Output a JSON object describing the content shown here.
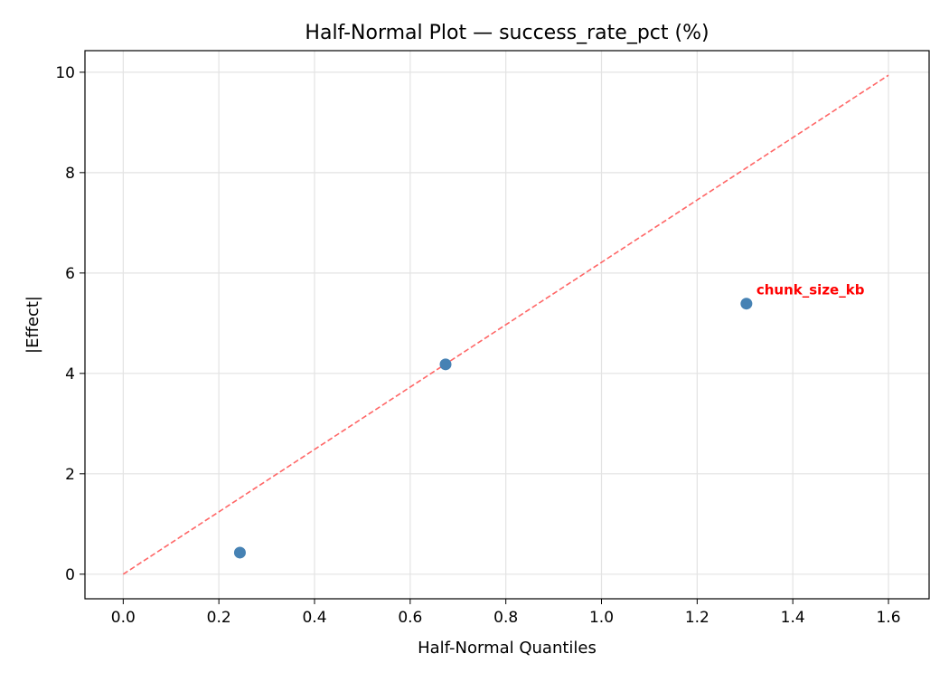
{
  "chart_data": {
    "type": "scatter",
    "title": "Half-Normal Plot — success_rate_pct (%)",
    "xlabel": "Half-Normal Quantiles",
    "ylabel": "|Effect|",
    "xlim": [
      -0.08,
      1.685
    ],
    "ylim": [
      -0.49,
      10.43
    ],
    "xticks": [
      0.0,
      0.2,
      0.4,
      0.6,
      0.8,
      1.0,
      1.2,
      1.4,
      1.6
    ],
    "xtick_labels": [
      "0.0",
      "0.2",
      "0.4",
      "0.6",
      "0.8",
      "1.0",
      "1.2",
      "1.4",
      "1.6"
    ],
    "yticks": [
      0,
      2,
      4,
      6,
      8,
      10
    ],
    "ytick_labels": [
      "0",
      "2",
      "4",
      "6",
      "8",
      "10"
    ],
    "grid": true,
    "points": [
      {
        "x": 0.244,
        "y": 0.43
      },
      {
        "x": 0.674,
        "y": 4.18
      },
      {
        "x": 1.303,
        "y": 5.39,
        "label": "chunk_size_kb"
      }
    ],
    "reference_line": {
      "x": [
        0,
        1.6
      ],
      "y": [
        0,
        9.94
      ],
      "style": "dashed"
    },
    "colors": {
      "points": "#4682b4",
      "reference_line": "#ff6666",
      "annotation": "#ff0000"
    }
  }
}
